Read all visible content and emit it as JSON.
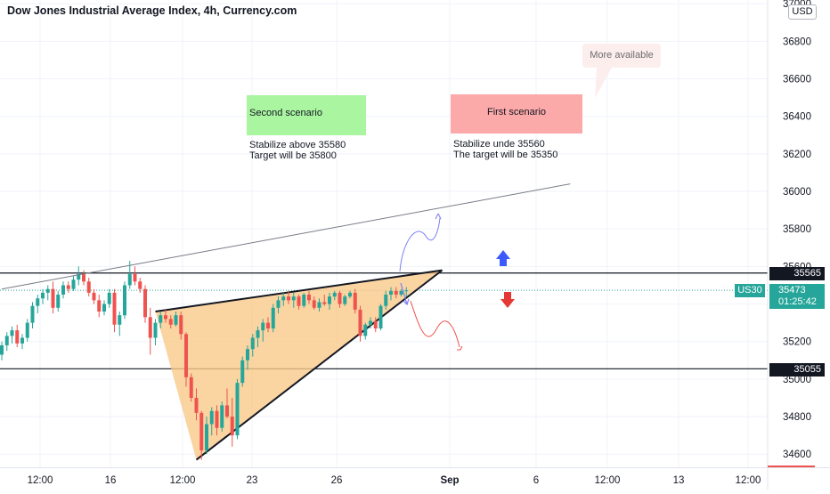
{
  "header": {
    "title": "Dow Jones Industrial Average Index, 4h, Currency.com",
    "currency": "USD"
  },
  "notes": {
    "second_scenario": {
      "title": "Second scenario",
      "body": "Stabilize above 35580\nTarget will be 35800"
    },
    "first_scenario": {
      "title": "First scenario",
      "body": "Stabilize unde 35560\nThe target will be 35350"
    },
    "more_available": "More available"
  },
  "price_labels": {
    "resistance": "35565",
    "support": "35055",
    "symbol": "US30",
    "last_price": "35473",
    "countdown": "01:25:42"
  },
  "colors": {
    "up_candle": "#26a69a",
    "down_candle": "#ef5350",
    "wedge_fill": "#f9c98a",
    "symbol_badge": "#26a69a",
    "arrow_up": "#3d5afe",
    "arrow_down": "#e53935"
  },
  "chart_data": {
    "type": "candlestick",
    "title": "Dow Jones Industrial Average Index, 4h, Currency.com",
    "y_axis": {
      "ticks": [
        34600,
        34800,
        35000,
        35200,
        35400,
        35600,
        35800,
        36000,
        36200,
        36400,
        36600,
        36800,
        37000
      ],
      "range": [
        34530,
        37020
      ],
      "position": "right"
    },
    "x_axis": {
      "ticks": [
        "12:00",
        "16",
        "12:00",
        "23",
        "26",
        "Sep",
        "6",
        "12:00",
        "13",
        "12:00"
      ]
    },
    "horizontal_levels": [
      35565,
      35055
    ],
    "last_price": 35473,
    "candles": [
      [
        35130,
        35200,
        35100,
        35180
      ],
      [
        35180,
        35250,
        35150,
        35230
      ],
      [
        35230,
        35280,
        35190,
        35260
      ],
      [
        35260,
        35290,
        35170,
        35190
      ],
      [
        35190,
        35240,
        35160,
        35220
      ],
      [
        35220,
        35320,
        35200,
        35300
      ],
      [
        35300,
        35410,
        35270,
        35390
      ],
      [
        35390,
        35450,
        35350,
        35430
      ],
      [
        35430,
        35480,
        35400,
        35460
      ],
      [
        35460,
        35500,
        35420,
        35480
      ],
      [
        35480,
        35520,
        35350,
        35380
      ],
      [
        35380,
        35470,
        35360,
        35450
      ],
      [
        35450,
        35520,
        35430,
        35500
      ],
      [
        35500,
        35520,
        35460,
        35480
      ],
      [
        35480,
        35550,
        35470,
        35530
      ],
      [
        35530,
        35600,
        35500,
        35560
      ],
      [
        35560,
        35580,
        35500,
        35520
      ],
      [
        35520,
        35540,
        35440,
        35460
      ],
      [
        35460,
        35480,
        35400,
        35420
      ],
      [
        35420,
        35450,
        35330,
        35360
      ],
      [
        35360,
        35420,
        35340,
        35400
      ],
      [
        35400,
        35480,
        35380,
        35460
      ],
      [
        35460,
        35480,
        35250,
        35290
      ],
      [
        35290,
        35360,
        35230,
        35340
      ],
      [
        35340,
        35520,
        35320,
        35500
      ],
      [
        35500,
        35630,
        35480,
        35560
      ],
      [
        35560,
        35600,
        35500,
        35520
      ],
      [
        35520,
        35540,
        35460,
        35480
      ],
      [
        35480,
        35500,
        35300,
        35330
      ],
      [
        35330,
        35380,
        35130,
        35220
      ],
      [
        35220,
        35320,
        35180,
        35300
      ],
      [
        35300,
        35360,
        35270,
        35340
      ],
      [
        35340,
        35370,
        35300,
        35320
      ],
      [
        35320,
        35340,
        35270,
        35290
      ],
      [
        35290,
        35360,
        35280,
        35340
      ],
      [
        35340,
        35360,
        35210,
        35240
      ],
      [
        35240,
        35250,
        34960,
        35010
      ],
      [
        35010,
        35030,
        34880,
        34900
      ],
      [
        34900,
        34950,
        34780,
        34820
      ],
      [
        34820,
        34830,
        34570,
        34620
      ],
      [
        34620,
        34800,
        34600,
        34760
      ],
      [
        34760,
        34850,
        34700,
        34830
      ],
      [
        34830,
        34860,
        34700,
        34740
      ],
      [
        34740,
        34880,
        34720,
        34860
      ],
      [
        34860,
        34950,
        34790,
        34800
      ],
      [
        34800,
        34900,
        34640,
        34700
      ],
      [
        34700,
        35000,
        34680,
        34980
      ],
      [
        34980,
        35120,
        34960,
        35100
      ],
      [
        35100,
        35180,
        35050,
        35160
      ],
      [
        35160,
        35240,
        35120,
        35220
      ],
      [
        35220,
        35280,
        35170,
        35260
      ],
      [
        35260,
        35320,
        35200,
        35300
      ],
      [
        35300,
        35330,
        35250,
        35270
      ],
      [
        35270,
        35400,
        35250,
        35380
      ],
      [
        35380,
        35440,
        35350,
        35420
      ],
      [
        35420,
        35460,
        35390,
        35440
      ],
      [
        35440,
        35470,
        35400,
        35420
      ],
      [
        35420,
        35460,
        35380,
        35440
      ],
      [
        35440,
        35450,
        35370,
        35390
      ],
      [
        35390,
        35460,
        35380,
        35450
      ],
      [
        35450,
        35470,
        35400,
        35420
      ],
      [
        35420,
        35440,
        35370,
        35380
      ],
      [
        35380,
        35430,
        35360,
        35410
      ],
      [
        35410,
        35450,
        35390,
        35400
      ],
      [
        35400,
        35460,
        35370,
        35440
      ],
      [
        35440,
        35470,
        35420,
        35460
      ],
      [
        35460,
        35470,
        35380,
        35400
      ],
      [
        35400,
        35450,
        35390,
        35440
      ],
      [
        35440,
        35470,
        35430,
        35460
      ],
      [
        35460,
        35480,
        35350,
        35370
      ],
      [
        35370,
        35390,
        35200,
        35230
      ],
      [
        35230,
        35300,
        35210,
        35290
      ],
      [
        35290,
        35330,
        35270,
        35310
      ],
      [
        35310,
        35330,
        35250,
        35270
      ],
      [
        35270,
        35400,
        35260,
        35390
      ],
      [
        35390,
        35470,
        35370,
        35450
      ],
      [
        35450,
        35490,
        35420,
        35470
      ],
      [
        35470,
        35490,
        35430,
        35450
      ],
      [
        35450,
        35480,
        35440,
        35470
      ],
      [
        35470,
        35490,
        35440,
        35473
      ]
    ],
    "annotations": {
      "trend_line": {
        "from": [
          0,
          35480
        ],
        "to": [
          111,
          36040
        ]
      },
      "wedge": {
        "apex": [
          86,
          35580
        ],
        "upper_start": [
          30,
          35360
        ],
        "lower_start": [
          38,
          34570
        ]
      },
      "scenario_paths": [
        "bullish curve toward 35850",
        "bearish curve toward 35150"
      ],
      "arrows": [
        "up",
        "down"
      ]
    }
  }
}
